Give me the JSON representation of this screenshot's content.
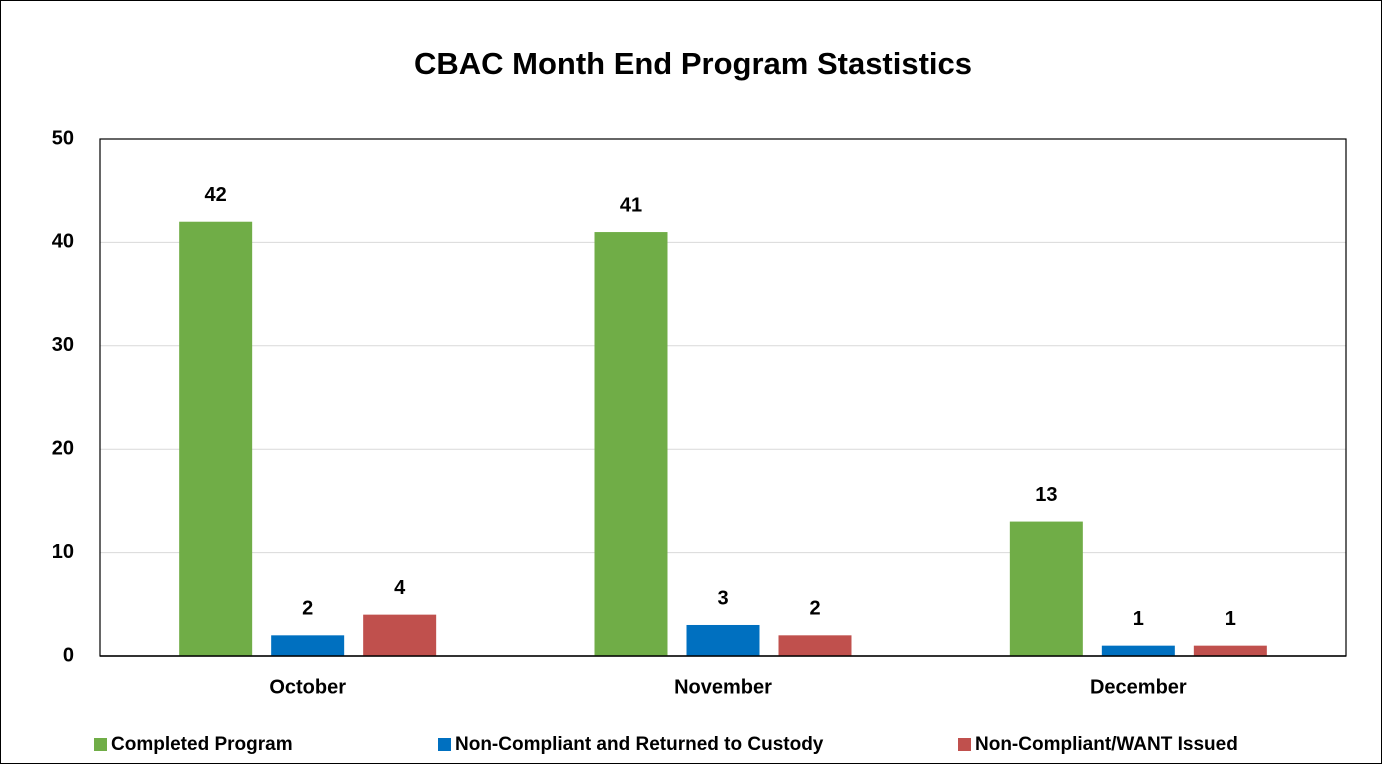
{
  "chart_data": {
    "type": "bar",
    "title": "CBAC Month End Program Stastistics",
    "categories": [
      "October",
      "November",
      "December"
    ],
    "series": [
      {
        "name": "Completed Program",
        "color": "#70ad47",
        "values": [
          42,
          41,
          13
        ]
      },
      {
        "name": "Non-Compliant and Returned to Custody",
        "color": "#0070c0",
        "values": [
          2,
          3,
          1
        ]
      },
      {
        "name": "Non-Compliant/WANT Issued",
        "color": "#c0504d",
        "values": [
          4,
          2,
          1
        ]
      }
    ],
    "ylim": [
      0,
      50
    ],
    "yticks": [
      0,
      10,
      20,
      30,
      40,
      50
    ],
    "grid": true,
    "legend": "bottom"
  }
}
